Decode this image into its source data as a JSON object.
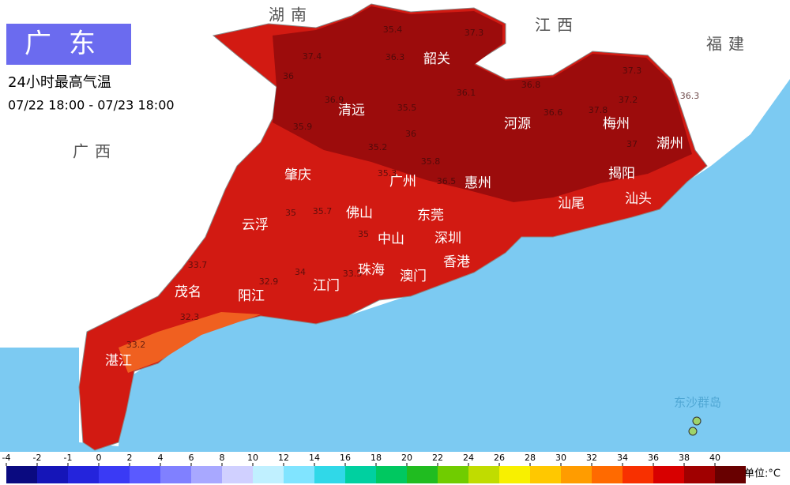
{
  "header": {
    "title": "广东",
    "subtitle": "24小时最高气温",
    "period": "07/22 18:00 - 07/23 18:00"
  },
  "neighbors": [
    "湖南",
    "江西",
    "福建",
    "广西"
  ],
  "cities": [
    "韶关",
    "清远",
    "河源",
    "梅州",
    "潮州",
    "肇庆",
    "广州",
    "惠州",
    "揭阳",
    "汕尾",
    "汕头",
    "佛山",
    "东莞",
    "云浮",
    "深圳",
    "中山",
    "珠海",
    "香港",
    "澳门",
    "江门",
    "茂名",
    "阳江",
    "湛江"
  ],
  "islands": "东沙群岛",
  "temperatures": [
    35.4,
    37.3,
    37.4,
    36.3,
    36,
    36.9,
    35.5,
    36.1,
    36.8,
    37.3,
    37.2,
    37.8,
    35.9,
    35.2,
    36,
    36.6,
    37,
    35.3,
    35.8,
    36.5,
    35,
    35.7,
    35,
    34,
    33.7,
    32.9,
    32.3,
    33.2,
    36.3,
    33.5
  ],
  "legend": {
    "ticks": [
      -4,
      -2,
      -1,
      0,
      2,
      4,
      6,
      8,
      10,
      12,
      14,
      16,
      18,
      20,
      22,
      24,
      26,
      28,
      30,
      32,
      34,
      36,
      38,
      40
    ],
    "colors": [
      "#0a0a80",
      "#1515b8",
      "#2424dc",
      "#3a3af5",
      "#5a5aff",
      "#8080ff",
      "#a8a8ff",
      "#d0d0ff",
      "#c0f0ff",
      "#80e4ff",
      "#30d8e8",
      "#00d0a0",
      "#00c860",
      "#20bc20",
      "#70cc00",
      "#c0dc00",
      "#f8f000",
      "#ffc800",
      "#ff9c00",
      "#ff6a00",
      "#f83000",
      "#d80000",
      "#a00000",
      "#680000"
    ],
    "unit": "单位:°C"
  }
}
